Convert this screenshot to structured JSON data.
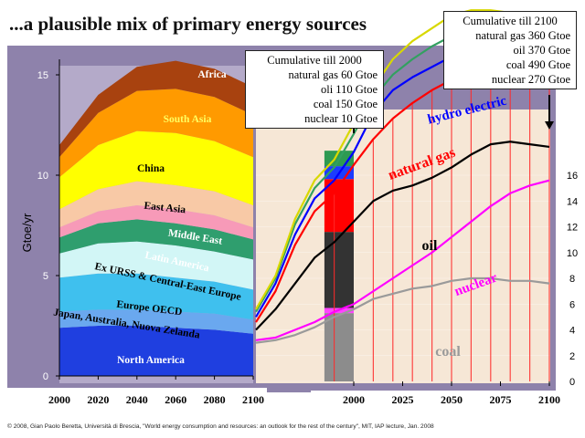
{
  "title": "...a plausible mix of primary energy sources",
  "footer": "© 2008, Gian Paolo Beretta, Università di Brescia, \"World energy consumption and resources: an outlook for the rest of the century\", MIT, IAP lecture, Jan. 2008",
  "box_2000": {
    "header": "Cumulative till 2000",
    "lines": [
      "natural gas   60 Gtoe",
      "oli 110 Gtoe",
      "coal 150 Gtoe",
      "nuclear   10 Gtoe"
    ]
  },
  "box_2100": {
    "header": "Cumulative till 2100",
    "lines": [
      "natural gas 360 Gtoe",
      "oil 370 Gtoe",
      "coal 490 Gtoe",
      "nuclear 270 Gtoe"
    ]
  },
  "chart_data": [
    {
      "type": "area",
      "ylabel": "Gtoe/yr",
      "ylim": [
        0,
        16
      ],
      "y_ticks": [
        "0",
        "5",
        "10",
        "15"
      ],
      "x_ticks": [
        "2000",
        "2020",
        "2040",
        "2060",
        "2080",
        "2100"
      ],
      "x": [
        2000,
        2020,
        2040,
        2060,
        2080,
        2100
      ],
      "series": [
        {
          "name": "North America",
          "color": "#1f3fe0",
          "values": [
            2.4,
            2.5,
            2.5,
            2.4,
            2.3,
            2.1
          ]
        },
        {
          "name": "Japan, Australia, Nuova Zelanda",
          "color": "#6aa8ef",
          "values": [
            0.8,
            0.8,
            0.8,
            0.8,
            0.8,
            0.7
          ]
        },
        {
          "name": "Europe OECD",
          "color": "#3fc0ee",
          "values": [
            1.7,
            1.8,
            1.8,
            1.7,
            1.6,
            1.5
          ]
        },
        {
          "name": "Ex URSS & Central-East Europe",
          "color": "#d2f6f6",
          "values": [
            1.2,
            1.5,
            1.6,
            1.6,
            1.5,
            1.5
          ]
        },
        {
          "name": "Latin America",
          "color": "#2f9e6e",
          "values": [
            0.8,
            1.0,
            1.1,
            1.1,
            1.1,
            1.0
          ]
        },
        {
          "name": "Middle East",
          "color": "#f79ab8",
          "values": [
            0.5,
            0.6,
            0.7,
            0.7,
            0.7,
            0.6
          ]
        },
        {
          "name": "East Asia",
          "color": "#f8c9a6",
          "values": [
            0.9,
            1.1,
            1.2,
            1.2,
            1.2,
            1.1
          ]
        },
        {
          "name": "China",
          "color": "#ffff00",
          "values": [
            1.6,
            2.2,
            2.5,
            2.6,
            2.5,
            2.4
          ]
        },
        {
          "name": "South Asia",
          "color": "#ff9a00",
          "values": [
            1.0,
            1.6,
            2.0,
            2.2,
            2.2,
            2.1
          ]
        },
        {
          "name": "Africa",
          "color": "#a8420f",
          "values": [
            0.6,
            0.9,
            1.2,
            1.4,
            1.4,
            1.4
          ]
        }
      ]
    },
    {
      "type": "line",
      "ylim": [
        0,
        16
      ],
      "y_ticks": [
        "0",
        "2",
        "4",
        "6",
        "8",
        "10",
        "12",
        "14",
        "16"
      ],
      "x_ticks": [
        "2000",
        "2025",
        "2050",
        "2075",
        "2100"
      ],
      "x": [
        1950,
        1960,
        1970,
        1980,
        1990,
        2000,
        2010,
        2020,
        2030,
        2040,
        2050,
        2060,
        2070,
        2080,
        2090,
        2100
      ],
      "series": [
        {
          "name": "coal",
          "color": "#9a9a9a",
          "values": [
            1.5,
            1.6,
            1.8,
            2.1,
            2.5,
            2.8,
            3.2,
            3.4,
            3.6,
            3.7,
            3.9,
            4.0,
            4.0,
            3.9,
            3.9,
            3.8
          ]
        },
        {
          "name": "nuclear",
          "color": "#ff00ff",
          "values": [
            1.6,
            1.7,
            2.0,
            2.3,
            2.7,
            3.0,
            3.5,
            4.0,
            4.5,
            5.0,
            5.6,
            6.2,
            6.8,
            7.3,
            7.6,
            7.8
          ]
        },
        {
          "name": "oil",
          "color": "#000000",
          "values": [
            2.0,
            2.8,
            3.8,
            4.8,
            5.4,
            6.2,
            7.0,
            7.4,
            7.6,
            7.9,
            8.3,
            8.8,
            9.2,
            9.3,
            9.2,
            9.1
          ]
        },
        {
          "name": "natural gas",
          "color": "#ff0000",
          "values": [
            2.3,
            3.5,
            5.3,
            6.6,
            7.3,
            8.4,
            9.4,
            10.2,
            10.8,
            11.3,
            11.7,
            12.0,
            12.1,
            12.0,
            11.8,
            11.5
          ]
        },
        {
          "name": "hydro electric",
          "color": "#0000ff",
          "values": [
            2.5,
            3.8,
            5.7,
            7.1,
            7.8,
            8.9,
            10.4,
            11.3,
            11.8,
            12.2,
            12.6,
            12.8,
            12.8,
            12.6,
            12.4,
            12.2
          ]
        },
        {
          "color": "#32a060",
          "values": [
            2.7,
            4.0,
            6.1,
            7.5,
            8.3,
            9.6,
            11.0,
            11.9,
            12.5,
            13.0,
            13.4,
            13.6,
            13.6,
            13.4,
            13.2,
            13.0
          ]
        },
        {
          "color": "#d8d800",
          "values": [
            2.8,
            4.1,
            6.3,
            7.8,
            8.6,
            10.0,
            11.4,
            12.5,
            13.2,
            13.7,
            14.2,
            14.4,
            14.4,
            14.3,
            14.1,
            13.9
          ]
        }
      ]
    }
  ]
}
